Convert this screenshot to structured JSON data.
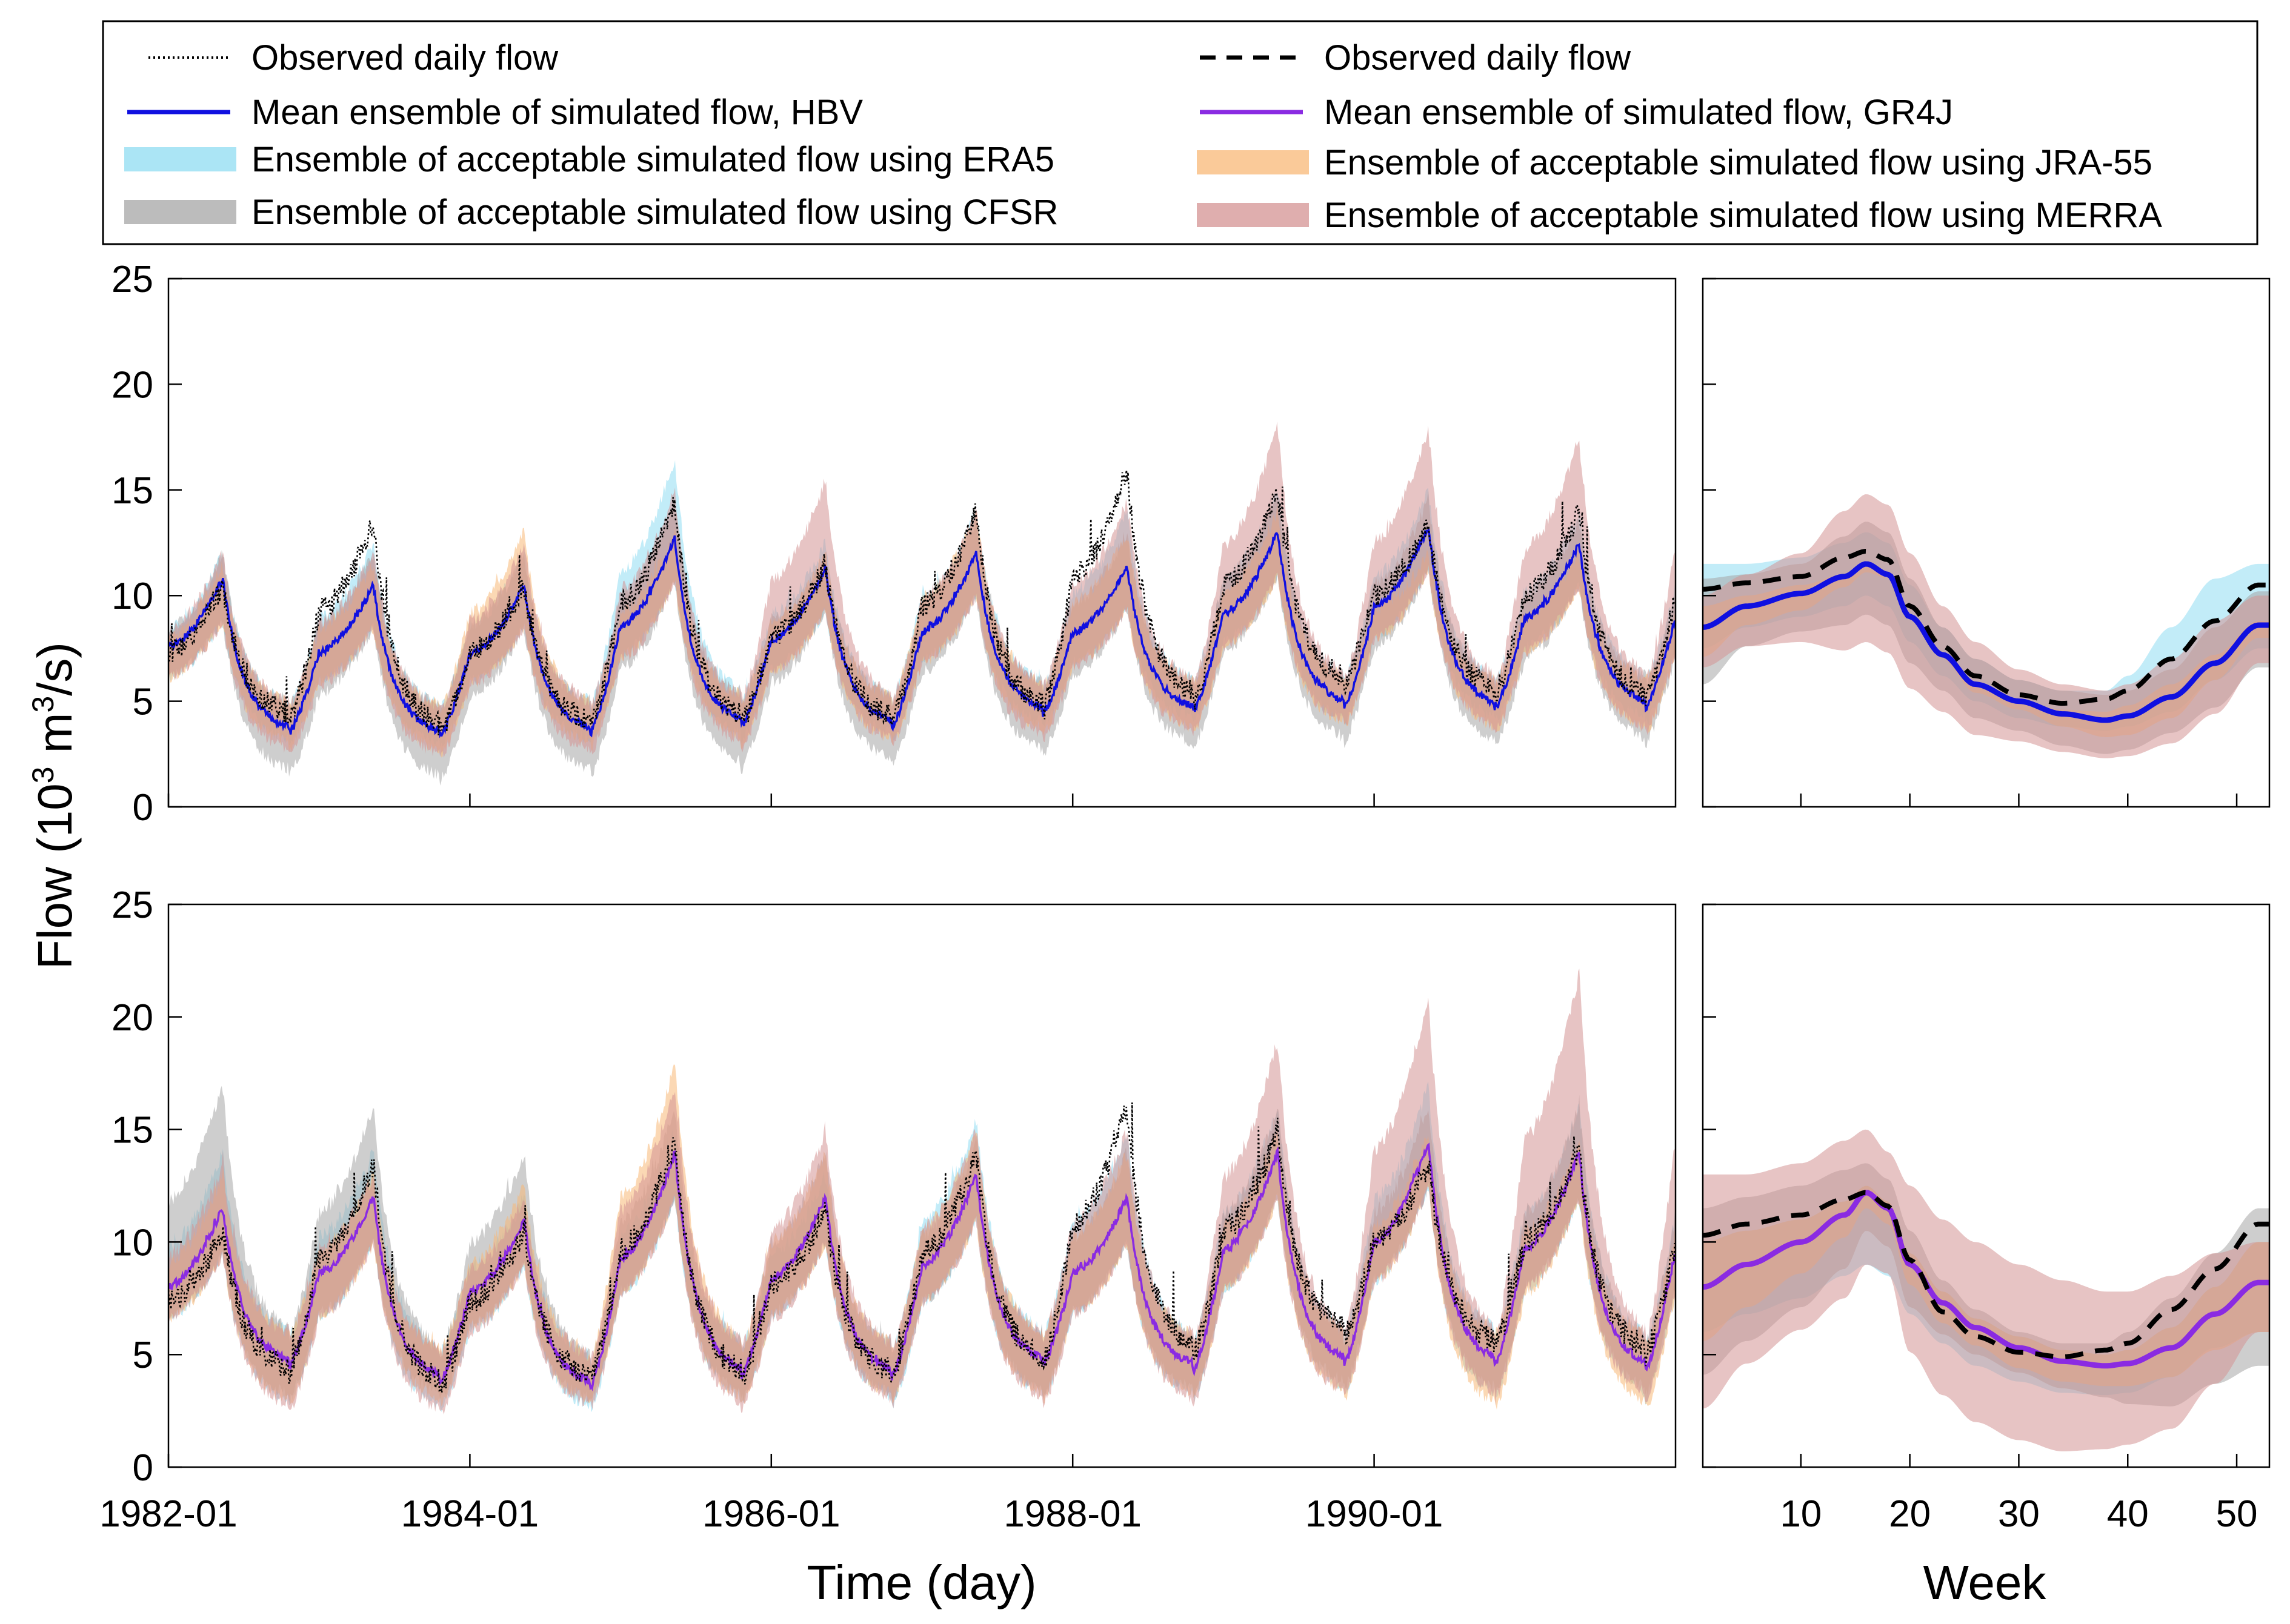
{
  "legend": {
    "left": [
      {
        "label": "Observed daily flow",
        "kind": "dotted",
        "color": "#000000"
      },
      {
        "label": "Mean ensemble of simulated flow, HBV",
        "kind": "line",
        "color": "#1010e0"
      },
      {
        "label": "Ensemble of acceptable simulated flow using ERA5",
        "kind": "band",
        "color": "#8fdcf2"
      },
      {
        "label": "Ensemble of acceptable simulated flow using CFSR",
        "kind": "band",
        "color": "#a6a6a6"
      }
    ],
    "right": [
      {
        "label": "Observed daily flow",
        "kind": "dashed",
        "color": "#000000"
      },
      {
        "label": "Mean ensemble of simulated flow, GR4J",
        "kind": "line",
        "color": "#8a2be2"
      },
      {
        "label": "Ensemble of acceptable simulated flow using JRA-55",
        "kind": "band",
        "color": "#f8b877"
      },
      {
        "label": "Ensemble of acceptable simulated flow using MERRA",
        "kind": "band",
        "color": "#d49393"
      }
    ]
  },
  "colors": {
    "era5": "#8fdcf2",
    "cfsr": "#a6a6a6",
    "jra55": "#f8b877",
    "merra": "#d49393",
    "hbv": "#1010e0",
    "gr4j": "#8a2be2",
    "observed": "#000000"
  },
  "axes": {
    "ylabel_main": "Flow (10",
    "ylabel_sup": "3",
    "ylabel_unit": " m",
    "ylabel_sup2": "3",
    "ylabel_tail": "/s)",
    "xlabel_time": "Time (day)",
    "xlabel_week": "Week",
    "yticks": [
      "0",
      "5",
      "10",
      "15",
      "20",
      "25"
    ],
    "time_ticks": [
      "1982-01",
      "1984-01",
      "1986-01",
      "1988-01",
      "1990-01"
    ],
    "week_ticks": [
      "10",
      "20",
      "30",
      "40",
      "50"
    ]
  },
  "chart_data": [
    {
      "type": "area",
      "panel": "HBV daily",
      "xlabel": "Time (day)",
      "ylabel": "Flow (10^3 m^3/s)",
      "x_range": [
        "1982-01",
        "1991-12"
      ],
      "ylim": [
        0,
        25
      ],
      "years": [
        1982,
        1983,
        1984,
        1985,
        1986,
        1987,
        1988,
        1989,
        1990,
        1991
      ],
      "series": [
        {
          "name": "Observed daily flow",
          "annual_peak": [
            10.5,
            13.5,
            10.5,
            14.5,
            11.5,
            14.0,
            16.0,
            15.0,
            13.5,
            14.0
          ],
          "annual_min": [
            4.2,
            3.5,
            3.8,
            3.9,
            4.0,
            4.5,
            5.0,
            5.8,
            5.3,
            5.0
          ]
        },
        {
          "name": "Mean ensemble of simulated flow, HBV",
          "annual_peak": [
            10.8,
            10.5,
            10.5,
            12.7,
            11.3,
            12.0,
            11.4,
            13.0,
            13.3,
            12.5
          ],
          "annual_min": [
            3.5,
            3.3,
            3.5,
            3.8,
            3.8,
            4.4,
            4.5,
            4.7,
            4.6,
            4.7
          ]
        }
      ],
      "bands": [
        {
          "name": "Ensemble of acceptable simulated flow using ERA5",
          "annual_peak_upper": [
            12.0,
            12.5,
            12.0,
            16.5,
            12.5,
            14.0,
            14.0,
            15.0,
            15.0,
            14.0
          ],
          "annual_min_lower": [
            3.0,
            2.8,
            3.0,
            3.2,
            3.3,
            3.8,
            4.0,
            4.0,
            4.0,
            4.0
          ]
        },
        {
          "name": "Ensemble of acceptable simulated flow using CFSR",
          "annual_peak_upper": [
            12.0,
            12.0,
            12.0,
            14.5,
            12.0,
            13.5,
            13.0,
            15.0,
            14.5,
            13.5
          ],
          "annual_min_lower": [
            1.5,
            1.2,
            1.5,
            1.8,
            2.0,
            2.5,
            2.8,
            3.0,
            2.8,
            3.0
          ]
        },
        {
          "name": "Ensemble of acceptable simulated flow using JRA-55",
          "annual_peak_upper": [
            11.5,
            11.5,
            13.0,
            13.0,
            12.0,
            14.0,
            13.0,
            14.0,
            12.0,
            12.0
          ],
          "annual_min_lower": [
            2.8,
            2.5,
            2.8,
            3.0,
            3.0,
            3.5,
            3.5,
            3.8,
            3.5,
            3.5
          ]
        },
        {
          "name": "Ensemble of acceptable simulated flow using MERRA",
          "annual_peak_upper": [
            12.0,
            12.0,
            12.5,
            15.0,
            15.5,
            14.0,
            14.5,
            18.0,
            18.0,
            17.5
          ],
          "annual_min_lower": [
            2.5,
            2.3,
            2.5,
            2.8,
            3.0,
            3.2,
            3.5,
            3.8,
            3.5,
            3.5
          ]
        }
      ]
    },
    {
      "type": "area",
      "panel": "HBV weekly",
      "xlabel": "Week",
      "ylabel": "Flow (10^3 m^3/s)",
      "ylim": [
        0,
        25
      ],
      "x": [
        1,
        5,
        10,
        14,
        16,
        18,
        20,
        23,
        26,
        30,
        34,
        38,
        40,
        44,
        48,
        52
      ],
      "series": [
        {
          "name": "Observed daily flow",
          "values": [
            10.3,
            10.6,
            10.9,
            11.8,
            12.1,
            11.7,
            9.5,
            7.6,
            6.2,
            5.3,
            4.9,
            5.1,
            5.5,
            7.0,
            8.8,
            10.5
          ]
        },
        {
          "name": "Mean ensemble of simulated flow, HBV",
          "values": [
            8.5,
            9.5,
            10.1,
            10.9,
            11.5,
            11.0,
            9.0,
            7.2,
            5.8,
            5.0,
            4.4,
            4.1,
            4.3,
            5.2,
            6.8,
            8.6
          ]
        }
      ],
      "bands": [
        {
          "name": "Ensemble of acceptable simulated flow using ERA5",
          "upper": [
            11.5,
            11.5,
            11.8,
            12.5,
            13.0,
            12.5,
            10.5,
            8.5,
            7.0,
            6.0,
            5.5,
            5.5,
            6.2,
            8.5,
            10.8,
            11.5
          ],
          "lower": [
            7.5,
            8.5,
            9.0,
            9.5,
            10.0,
            9.5,
            7.8,
            6.2,
            5.0,
            4.2,
            3.8,
            3.6,
            3.8,
            4.5,
            6.0,
            7.5
          ]
        },
        {
          "name": "Ensemble of acceptable simulated flow using CFSR",
          "upper": [
            10.8,
            11.0,
            11.5,
            12.8,
            13.5,
            13.0,
            10.8,
            8.5,
            7.0,
            6.0,
            5.5,
            5.3,
            5.5,
            6.5,
            8.5,
            10.2
          ]
        },
        {
          "name": "Ensemble of acceptable simulated flow using JRA-55",
          "upper": [
            9.5,
            10.0,
            10.5,
            11.0,
            11.5,
            10.8,
            8.8,
            7.0,
            5.8,
            5.0,
            4.6,
            4.5,
            4.8,
            5.8,
            7.2,
            8.8
          ]
        },
        {
          "name": "Ensemble of acceptable simulated flow using MERRA",
          "upper": [
            10.0,
            11.0,
            12.0,
            14.0,
            14.8,
            14.3,
            12.0,
            9.5,
            7.8,
            6.5,
            5.8,
            5.5,
            5.8,
            7.0,
            8.8,
            10.0
          ]
        }
      ]
    },
    {
      "type": "area",
      "panel": "GR4J daily",
      "xlabel": "Time (day)",
      "ylabel": "Flow (10^3 m^3/s)",
      "x_range": [
        "1982-01",
        "1991-12"
      ],
      "ylim": [
        0,
        25
      ],
      "years": [
        1982,
        1983,
        1984,
        1985,
        1986,
        1987,
        1988,
        1989,
        1990,
        1991
      ],
      "series": [
        {
          "name": "Observed daily flow",
          "annual_peak": [
            10.5,
            13.5,
            10.5,
            14.5,
            11.5,
            14.0,
            16.0,
            15.0,
            13.5,
            14.0
          ],
          "annual_min": [
            4.2,
            3.5,
            3.8,
            3.9,
            4.0,
            4.5,
            5.0,
            5.8,
            5.3,
            5.0
          ]
        },
        {
          "name": "Mean ensemble of simulated flow, GR4J",
          "annual_peak": [
            11.5,
            12.0,
            11.0,
            14.0,
            12.0,
            13.0,
            12.0,
            14.0,
            14.5,
            14.0
          ],
          "annual_min": [
            4.5,
            3.8,
            3.5,
            4.0,
            4.0,
            4.5,
            4.3,
            4.5,
            4.5,
            4.3
          ]
        }
      ],
      "bands": [
        {
          "name": "Ensemble of acceptable simulated flow using ERA5",
          "annual_peak_upper": [
            14.0,
            14.0,
            12.0,
            15.0,
            13.0,
            15.5,
            15.0,
            16.0,
            17.0,
            16.0
          ],
          "annual_min_lower": [
            2.8,
            2.5,
            2.5,
            2.8,
            2.8,
            3.0,
            3.0,
            3.2,
            3.0,
            3.0
          ]
        },
        {
          "name": "Ensemble of acceptable simulated flow using CFSR",
          "annual_peak_upper": [
            17.0,
            16.0,
            14.0,
            16.0,
            14.0,
            14.5,
            14.0,
            16.0,
            16.0,
            16.0
          ],
          "annual_min_lower": [
            3.0,
            3.0,
            2.8,
            3.0,
            3.0,
            3.2,
            3.2,
            3.5,
            3.2,
            3.2
          ]
        },
        {
          "name": "Ensemble of acceptable simulated flow using JRA-55",
          "annual_peak_upper": [
            13.0,
            13.0,
            12.5,
            18.0,
            14.0,
            15.0,
            14.0,
            15.0,
            15.0,
            14.5
          ],
          "annual_min_lower": [
            2.8,
            2.8,
            2.8,
            2.8,
            3.0,
            3.0,
            3.0,
            3.0,
            2.5,
            2.5
          ]
        },
        {
          "name": "Ensemble of acceptable simulated flow using MERRA",
          "annual_peak_upper": [
            13.5,
            13.0,
            12.0,
            17.0,
            15.0,
            15.0,
            15.0,
            19.0,
            21.0,
            22.0
          ],
          "annual_min_lower": [
            2.5,
            2.3,
            2.5,
            2.5,
            2.8,
            2.8,
            2.8,
            3.0,
            3.0,
            3.0
          ]
        }
      ]
    },
    {
      "type": "area",
      "panel": "GR4J weekly",
      "xlabel": "Week",
      "ylabel": "Flow (10^3 m^3/s)",
      "ylim": [
        0,
        25
      ],
      "x": [
        1,
        5,
        10,
        14,
        16,
        18,
        20,
        23,
        26,
        30,
        34,
        38,
        40,
        44,
        48,
        52
      ],
      "series": [
        {
          "name": "Observed daily flow",
          "values": [
            10.3,
            10.8,
            11.2,
            11.9,
            12.2,
            11.6,
            9.2,
            6.9,
            5.8,
            5.1,
            4.9,
            5.2,
            5.5,
            7.0,
            8.8,
            10.8
          ]
        },
        {
          "name": "Mean ensemble of simulated flow, GR4J",
          "values": [
            8.0,
            9.0,
            10.0,
            11.2,
            12.2,
            11.5,
            9.0,
            7.3,
            6.2,
            5.3,
            4.7,
            4.5,
            4.6,
            5.3,
            6.8,
            8.2
          ]
        }
      ],
      "bands": [
        {
          "name": "Ensemble of acceptable simulated flow using ERA5",
          "upper": [
            10.0,
            10.5,
            11.0,
            11.8,
            12.5,
            11.8,
            9.5,
            7.8,
            6.6,
            5.8,
            5.2,
            5.0,
            5.2,
            6.2,
            8.0,
            10.0
          ],
          "lower": [
            6.0,
            6.8,
            7.5,
            8.5,
            9.0,
            8.5,
            6.8,
            5.5,
            4.5,
            3.8,
            3.3,
            3.2,
            3.3,
            4.0,
            5.3,
            6.0
          ]
        },
        {
          "name": "Ensemble of acceptable simulated flow using CFSR",
          "upper": [
            11.5,
            12.0,
            12.5,
            13.2,
            13.5,
            12.8,
            10.5,
            8.3,
            7.0,
            6.0,
            5.5,
            5.5,
            6.0,
            7.5,
            9.5,
            11.5
          ]
        },
        {
          "name": "Ensemble of acceptable simulated flow using JRA-55",
          "upper": [
            10.0,
            10.5,
            11.0,
            11.8,
            12.5,
            11.8,
            9.5,
            7.8,
            6.6,
            5.8,
            5.2,
            5.0,
            5.2,
            6.2,
            8.0,
            10.0
          ]
        },
        {
          "name": "Ensemble of acceptable simulated flow using MERRA",
          "upper": [
            13.0,
            13.0,
            13.5,
            14.5,
            15.0,
            14.0,
            12.5,
            11.0,
            10.0,
            9.0,
            8.3,
            7.8,
            7.8,
            8.5,
            9.5,
            10.0
          ]
        }
      ]
    }
  ]
}
